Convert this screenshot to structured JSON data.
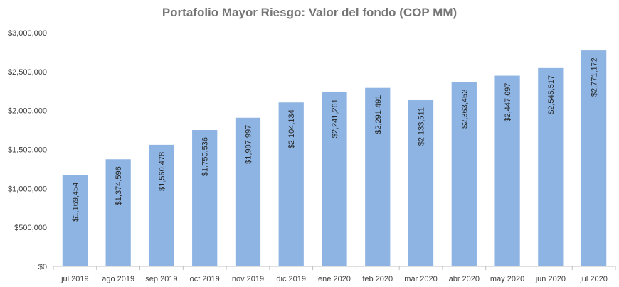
{
  "chart_data": {
    "type": "bar",
    "title": "Portafolio Mayor Riesgo: Valor del fondo (COP MM)",
    "xlabel": "",
    "ylabel": "",
    "categories": [
      "jul 2019",
      "ago 2019",
      "sep 2019",
      "oct 2019",
      "nov 2019",
      "dic 2019",
      "ene 2020",
      "feb 2020",
      "mar 2020",
      "abr 2020",
      "may 2020",
      "jun 2020",
      "jul 2020"
    ],
    "values": [
      1169454,
      1374596,
      1560478,
      1750536,
      1907997,
      2104134,
      2241261,
      2291491,
      2133511,
      2363452,
      2447697,
      2545517,
      2771172
    ],
    "data_labels": [
      "$1,169,454",
      "$1,374,596",
      "$1,560,478",
      "$1,750,536",
      "$1,907,997",
      "$2,104,134",
      "$2,241,261",
      "$2,291,491",
      "$2,133,511",
      "$2,363,452",
      "$2,447,697",
      "$2,545,517",
      "$2,771,172"
    ],
    "ylim": [
      0,
      3000000
    ],
    "yticks": [
      0,
      500000,
      1000000,
      1500000,
      2000000,
      2500000,
      3000000
    ],
    "ytick_labels": [
      "$0",
      "$500,000",
      "$1,000,000",
      "$1,500,000",
      "$2,000,000",
      "$2,500,000",
      "$3,000,000"
    ],
    "grid": false,
    "legend": "none",
    "bar_color": "#8db4e2",
    "axis_color": "#bfbfbf"
  }
}
